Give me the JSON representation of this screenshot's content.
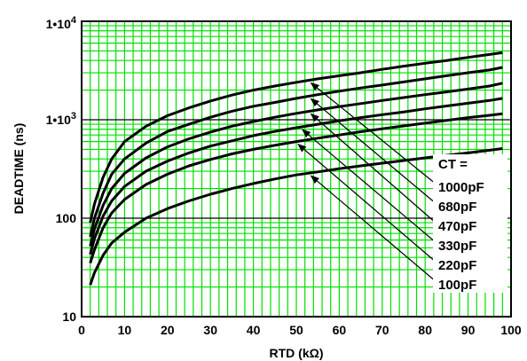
{
  "chart_data": {
    "type": "line",
    "title": "",
    "xlabel": "RTD (kΩ)",
    "ylabel": "DEADTIME  (ns)",
    "xlim": [
      0,
      100
    ],
    "ylim": [
      10,
      10000
    ],
    "yscale": "log",
    "grid": true,
    "grid_color": "#00e000",
    "x_ticks": [
      0,
      10,
      20,
      30,
      40,
      50,
      60,
      70,
      80,
      90,
      100
    ],
    "x_tick_labels": [
      "0",
      "10",
      "20",
      "30",
      "40",
      "50",
      "60",
      "70",
      "80",
      "90",
      "100"
    ],
    "y_tick_labels": [
      {
        "value": 10,
        "base": "10",
        "exp": ""
      },
      {
        "value": 100,
        "base": "100",
        "exp": ""
      },
      {
        "value": 1000,
        "base": "1•10",
        "exp": "3"
      },
      {
        "value": 10000,
        "base": "1•10",
        "exp": "4"
      }
    ],
    "legend_title": "CT =",
    "legend_placement": "right-inside",
    "x": [
      2,
      3,
      5,
      7,
      10,
      15,
      20,
      25,
      30,
      35,
      40,
      45,
      50,
      55,
      60,
      65,
      70,
      75,
      80,
      85,
      90,
      95,
      98
    ],
    "series": [
      {
        "name": "1000pF",
        "arrow_x": 53,
        "values": [
          90,
          140,
          260,
          400,
          600,
          860,
          1100,
          1320,
          1550,
          1780,
          2000,
          2200,
          2400,
          2600,
          2800,
          3000,
          3250,
          3500,
          3750,
          4000,
          4300,
          4600,
          4800
        ]
      },
      {
        "name": "680pF",
        "arrow_x": 53,
        "values": [
          65,
          100,
          180,
          280,
          400,
          580,
          760,
          900,
          1060,
          1220,
          1370,
          1500,
          1650,
          1800,
          1950,
          2100,
          2250,
          2420,
          2600,
          2800,
          3000,
          3200,
          3400
        ]
      },
      {
        "name": "470pF",
        "arrow_x": 53,
        "values": [
          52,
          78,
          135,
          200,
          285,
          410,
          530,
          640,
          750,
          860,
          960,
          1060,
          1160,
          1260,
          1360,
          1460,
          1570,
          1680,
          1800,
          1920,
          2050,
          2200,
          2350
        ]
      },
      {
        "name": "330pF",
        "arrow_x": 51,
        "values": [
          43,
          62,
          105,
          150,
          210,
          300,
          380,
          460,
          540,
          610,
          690,
          760,
          830,
          900,
          975,
          1050,
          1125,
          1200,
          1290,
          1380,
          1470,
          1570,
          1650
        ]
      },
      {
        "name": "220pF",
        "arrow_x": 50,
        "values": [
          35,
          48,
          80,
          113,
          155,
          220,
          280,
          340,
          395,
          450,
          500,
          550,
          600,
          650,
          700,
          755,
          810,
          865,
          925,
          985,
          1050,
          1110,
          1150
        ]
      },
      {
        "name": "100pF",
        "arrow_x": 53,
        "values": [
          21,
          28,
          42,
          56,
          72,
          100,
          125,
          150,
          175,
          200,
          225,
          250,
          275,
          295,
          318,
          340,
          362,
          385,
          410,
          435,
          460,
          490,
          510
        ]
      }
    ]
  }
}
